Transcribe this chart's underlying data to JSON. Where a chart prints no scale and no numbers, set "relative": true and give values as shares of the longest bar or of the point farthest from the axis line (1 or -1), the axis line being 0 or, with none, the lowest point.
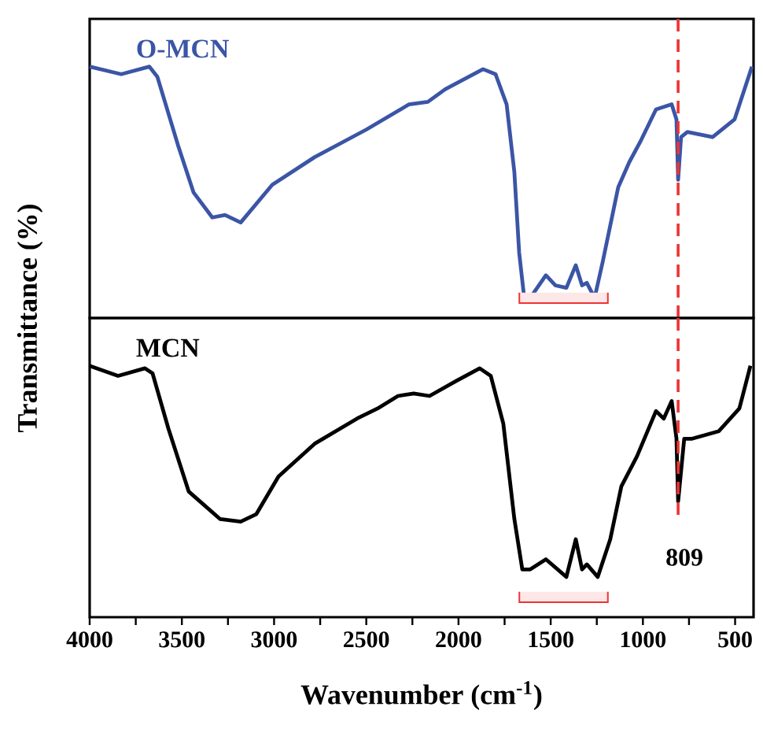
{
  "chart_data": [
    {
      "type": "line",
      "ylabel": "Transmittance (%)",
      "relative": true,
      "xlim": [
        4000,
        400
      ],
      "tick_labels": false,
      "x": [
        4000,
        3829,
        3676,
        3633,
        3522,
        3437,
        3335,
        3266,
        3181,
        3010,
        2780,
        2499,
        2268,
        2166,
        2072,
        1867,
        1799,
        1739,
        1697,
        1671,
        1645,
        1611,
        1526,
        1475,
        1415,
        1364,
        1330,
        1304,
        1262,
        1219,
        1134,
        1074,
        1015,
        929,
        844,
        818,
        809,
        793,
        759,
        622,
        503,
        409
      ],
      "series": [
        {
          "name": "O-MCN",
          "color": "#3b55a6",
          "values": [
            1.0,
            0.97,
            1.0,
            0.96,
            0.69,
            0.5,
            0.4,
            0.41,
            0.38,
            0.53,
            0.64,
            0.75,
            0.85,
            0.86,
            0.91,
            0.99,
            0.97,
            0.85,
            0.58,
            0.26,
            0.09,
            0.08,
            0.17,
            0.13,
            0.12,
            0.21,
            0.13,
            0.14,
            0.08,
            0.22,
            0.52,
            0.62,
            0.7,
            0.83,
            0.85,
            0.79,
            0.55,
            0.72,
            0.74,
            0.72,
            0.79,
            1.0
          ]
        }
      ],
      "ref_lines": [
        {
          "axis": "x",
          "value": 809,
          "label": null,
          "color": "#ee3333",
          "line_style": "dashed"
        }
      ],
      "bands": [
        {
          "axis": "x",
          "from": 1670,
          "to": 1190,
          "color": "#fde7e7"
        }
      ]
    },
    {
      "type": "line",
      "xlabel": "Wavenumber (cm$^{-1}$)",
      "relative": true,
      "xlim": [
        4000,
        400
      ],
      "tick_labels": "x",
      "xticks": [
        4000,
        {
          "value": 3750,
          "label": null
        },
        3500,
        {
          "value": 3250,
          "label": null
        },
        3000,
        {
          "value": 2750,
          "label": null
        },
        2500,
        {
          "value": 2250,
          "label": null
        },
        2000,
        {
          "value": 1750,
          "label": null
        },
        1500,
        {
          "value": 1250,
          "label": null
        },
        1000,
        {
          "value": 750,
          "label": null
        },
        500
      ],
      "x": [
        4000,
        3846,
        3701,
        3659,
        3573,
        3463,
        3292,
        3181,
        3096,
        2976,
        2780,
        2550,
        2439,
        2328,
        2243,
        2157,
        2012,
        1885,
        1825,
        1757,
        1697,
        1654,
        1611,
        1526,
        1415,
        1364,
        1330,
        1304,
        1245,
        1177,
        1117,
        1032,
        929,
        887,
        844,
        818,
        809,
        776,
        733,
        588,
        477,
        417
      ],
      "series": [
        {
          "name": "MCN",
          "color": "#000000",
          "values": [
            1.0,
            0.96,
            0.99,
            0.97,
            0.75,
            0.5,
            0.39,
            0.38,
            0.41,
            0.56,
            0.69,
            0.79,
            0.83,
            0.88,
            0.89,
            0.88,
            0.94,
            0.99,
            0.96,
            0.77,
            0.39,
            0.19,
            0.19,
            0.23,
            0.16,
            0.31,
            0.19,
            0.21,
            0.16,
            0.31,
            0.52,
            0.64,
            0.82,
            0.79,
            0.86,
            0.71,
            0.46,
            0.71,
            0.71,
            0.74,
            0.83,
            1.0
          ]
        }
      ],
      "ref_lines": [
        {
          "axis": "x",
          "value": 809,
          "label": "809",
          "color": "#ee3333",
          "line_style": "dashed"
        }
      ],
      "bands": [
        {
          "axis": "x",
          "from": 1670,
          "to": 1190,
          "color": "#fde7e7"
        }
      ]
    }
  ]
}
